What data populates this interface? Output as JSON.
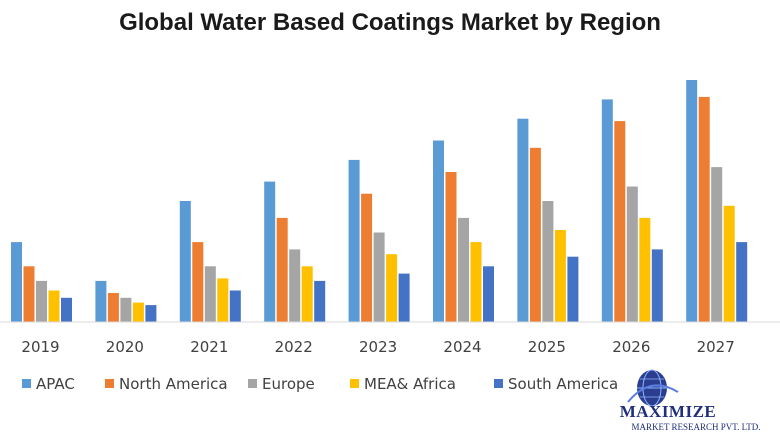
{
  "chart_data": {
    "type": "bar",
    "title": "Global Water Based Coatings Market by Region",
    "xlabel": "",
    "ylabel": "",
    "ylim": [
      0,
      100
    ],
    "grid": false,
    "legend_position": "bottom",
    "categories": [
      "2019",
      "2020",
      "2021",
      "2022",
      "2023",
      "2024",
      "2025",
      "2026",
      "2027"
    ],
    "series": [
      {
        "name": "APAC",
        "color": "#5B9BD5",
        "values": [
          33,
          17,
          50,
          58,
          67,
          75,
          84,
          92,
          100
        ]
      },
      {
        "name": "North America",
        "color": "#ED7D31",
        "values": [
          23,
          12,
          33,
          43,
          53,
          62,
          72,
          83,
          93
        ]
      },
      {
        "name": "Europe",
        "color": "#A5A5A5",
        "values": [
          17,
          10,
          23,
          30,
          37,
          43,
          50,
          56,
          64
        ]
      },
      {
        "name": "MEA& Africa",
        "color": "#FFC000",
        "values": [
          13,
          8,
          18,
          23,
          28,
          33,
          38,
          43,
          48
        ]
      },
      {
        "name": "South America",
        "color": "#4472C4",
        "values": [
          10,
          7,
          13,
          17,
          20,
          23,
          27,
          30,
          33
        ]
      }
    ]
  },
  "logo": {
    "name": "MAXIMIZE",
    "subtitle": "MARKET RESEARCH PVT. LTD."
  }
}
